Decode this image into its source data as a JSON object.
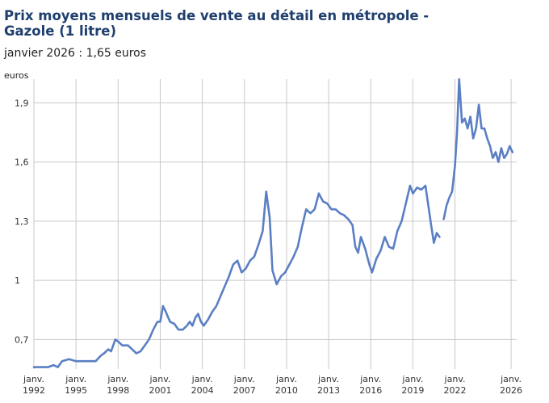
{
  "chart_data": {
    "type": "line",
    "title": "Prix moyens mensuels de vente au détail en métropole - Gazole (1 litre)",
    "subtitle": "janvier 2026 : 1,65 euros",
    "ylabel": "euros",
    "xlabel": "",
    "ylim": [
      0.55,
      2.02
    ],
    "xlim": [
      1992,
      2026.4
    ],
    "yticks": [
      {
        "value": 0.7,
        "label": "0,7"
      },
      {
        "value": 1.0,
        "label": "1"
      },
      {
        "value": 1.3,
        "label": "1,3"
      },
      {
        "value": 1.6,
        "label": "1,6"
      },
      {
        "value": 1.9,
        "label": "1,9"
      }
    ],
    "xticks": [
      {
        "value": 1992,
        "line1": "janv.",
        "line2": "1992"
      },
      {
        "value": 1995,
        "line1": "janv.",
        "line2": "1995"
      },
      {
        "value": 1998,
        "line1": "janv.",
        "line2": "1998"
      },
      {
        "value": 2001,
        "line1": "janv.",
        "line2": "2001"
      },
      {
        "value": 2004,
        "line1": "janv.",
        "line2": "2004"
      },
      {
        "value": 2007,
        "line1": "janv.",
        "line2": "2007"
      },
      {
        "value": 2010,
        "line1": "janv.",
        "line2": "2010"
      },
      {
        "value": 2013,
        "line1": "janv.",
        "line2": "2013"
      },
      {
        "value": 2016,
        "line1": "janv.",
        "line2": "2016"
      },
      {
        "value": 2019,
        "line1": "janv.",
        "line2": "2019"
      },
      {
        "value": 2022,
        "line1": "janv.",
        "line2": "2022"
      },
      {
        "value": 2026,
        "line1": "janv.",
        "line2": "2026"
      }
    ],
    "grid": true,
    "color": "#5b7fc4",
    "segments": [
      [
        [
          1992.0,
          0.56
        ],
        [
          1992.5,
          0.56
        ],
        [
          1993.0,
          0.56
        ],
        [
          1993.4,
          0.57
        ],
        [
          1993.7,
          0.56
        ],
        [
          1994.0,
          0.59
        ],
        [
          1994.5,
          0.6
        ],
        [
          1995.0,
          0.59
        ],
        [
          1995.5,
          0.59
        ],
        [
          1996.0,
          0.59
        ],
        [
          1996.4,
          0.59
        ],
        [
          1996.8,
          0.62
        ],
        [
          1997.0,
          0.63
        ],
        [
          1997.3,
          0.65
        ],
        [
          1997.5,
          0.64
        ],
        [
          1997.8,
          0.7
        ],
        [
          1998.0,
          0.69
        ],
        [
          1998.3,
          0.67
        ],
        [
          1998.7,
          0.67
        ],
        [
          1999.0,
          0.65
        ],
        [
          1999.3,
          0.63
        ],
        [
          1999.6,
          0.64
        ],
        [
          1999.9,
          0.67
        ],
        [
          2000.2,
          0.7
        ],
        [
          2000.5,
          0.75
        ],
        [
          2000.8,
          0.79
        ],
        [
          2001.0,
          0.79
        ],
        [
          2001.2,
          0.87
        ],
        [
          2001.4,
          0.84
        ],
        [
          2001.7,
          0.79
        ],
        [
          2002.0,
          0.78
        ],
        [
          2002.3,
          0.75
        ],
        [
          2002.6,
          0.75
        ],
        [
          2002.9,
          0.77
        ],
        [
          2003.1,
          0.79
        ],
        [
          2003.3,
          0.77
        ],
        [
          2003.5,
          0.81
        ],
        [
          2003.7,
          0.83
        ],
        [
          2003.9,
          0.79
        ],
        [
          2004.1,
          0.77
        ],
        [
          2004.4,
          0.8
        ],
        [
          2004.7,
          0.84
        ],
        [
          2005.0,
          0.87
        ],
        [
          2005.3,
          0.92
        ],
        [
          2005.6,
          0.97
        ],
        [
          2005.9,
          1.02
        ],
        [
          2006.2,
          1.08
        ],
        [
          2006.5,
          1.1
        ],
        [
          2006.8,
          1.04
        ],
        [
          2007.1,
          1.06
        ],
        [
          2007.4,
          1.1
        ],
        [
          2007.7,
          1.12
        ],
        [
          2008.0,
          1.18
        ],
        [
          2008.3,
          1.25
        ],
        [
          2008.55,
          1.45
        ],
        [
          2008.8,
          1.32
        ],
        [
          2009.0,
          1.05
        ],
        [
          2009.3,
          0.98
        ],
        [
          2009.6,
          1.02
        ],
        [
          2009.9,
          1.04
        ],
        [
          2010.2,
          1.08
        ],
        [
          2010.5,
          1.12
        ],
        [
          2010.8,
          1.17
        ],
        [
          2011.1,
          1.27
        ],
        [
          2011.4,
          1.36
        ],
        [
          2011.7,
          1.34
        ],
        [
          2012.0,
          1.36
        ],
        [
          2012.3,
          1.44
        ],
        [
          2012.6,
          1.4
        ],
        [
          2012.9,
          1.39
        ],
        [
          2013.2,
          1.36
        ],
        [
          2013.5,
          1.36
        ],
        [
          2013.8,
          1.34
        ],
        [
          2014.1,
          1.33
        ],
        [
          2014.4,
          1.31
        ],
        [
          2014.7,
          1.28
        ],
        [
          2014.9,
          1.17
        ],
        [
          2015.1,
          1.14
        ],
        [
          2015.3,
          1.22
        ],
        [
          2015.6,
          1.16
        ],
        [
          2015.9,
          1.08
        ],
        [
          2016.1,
          1.04
        ],
        [
          2016.4,
          1.11
        ],
        [
          2016.7,
          1.15
        ],
        [
          2017.0,
          1.22
        ],
        [
          2017.3,
          1.17
        ],
        [
          2017.6,
          1.16
        ],
        [
          2017.9,
          1.25
        ],
        [
          2018.2,
          1.3
        ],
        [
          2018.5,
          1.39
        ],
        [
          2018.8,
          1.48
        ],
        [
          2019.0,
          1.44
        ],
        [
          2019.3,
          1.47
        ],
        [
          2019.6,
          1.46
        ],
        [
          2019.9,
          1.48
        ],
        [
          2020.1,
          1.38
        ],
        [
          2020.3,
          1.28
        ],
        [
          2020.5,
          1.19
        ],
        [
          2020.7,
          1.24
        ],
        [
          2020.9,
          1.22
        ]
      ],
      [
        [
          2021.2,
          1.31
        ],
        [
          2021.4,
          1.38
        ],
        [
          2021.6,
          1.42
        ],
        [
          2021.8,
          1.45
        ],
        [
          2022.0,
          1.58
        ],
        [
          2022.15,
          1.75
        ],
        [
          2022.3,
          2.02
        ],
        [
          2022.5,
          1.8
        ],
        [
          2022.7,
          1.82
        ],
        [
          2022.9,
          1.77
        ],
        [
          2023.1,
          1.83
        ],
        [
          2023.3,
          1.72
        ],
        [
          2023.5,
          1.77
        ],
        [
          2023.7,
          1.89
        ],
        [
          2023.9,
          1.77
        ],
        [
          2024.1,
          1.77
        ],
        [
          2024.3,
          1.72
        ],
        [
          2024.5,
          1.68
        ],
        [
          2024.7,
          1.62
        ],
        [
          2024.9,
          1.65
        ],
        [
          2025.1,
          1.6
        ],
        [
          2025.3,
          1.67
        ],
        [
          2025.5,
          1.62
        ],
        [
          2025.7,
          1.64
        ],
        [
          2025.9,
          1.68
        ],
        [
          2026.1,
          1.65
        ]
      ]
    ]
  }
}
